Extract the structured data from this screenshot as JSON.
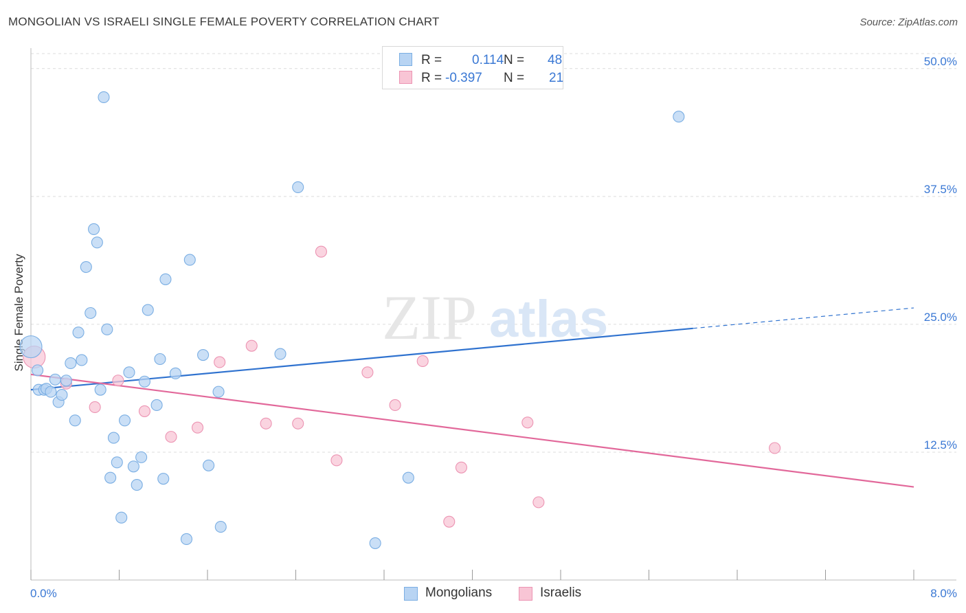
{
  "title": "MONGOLIAN VS ISRAELI SINGLE FEMALE POVERTY CORRELATION CHART",
  "source": "Source: ZipAtlas.com",
  "watermark": {
    "zip": "ZIP",
    "atlas": "atlas"
  },
  "colors": {
    "mongolian_fill": "#b8d4f3",
    "mongolian_stroke": "#7aaee3",
    "mongolian_line": "#2f72cf",
    "israeli_fill": "#f8c5d5",
    "israeli_stroke": "#ec93b2",
    "israeli_line": "#e2689a",
    "tick_label": "#3a78d4",
    "grid": "#dcdcdc"
  },
  "legend": {
    "rows": [
      {
        "r_label": "R =",
        "r_value": "0.114",
        "n_label": "N =",
        "n_value": "48"
      },
      {
        "r_label": "R =",
        "r_value": "-0.397",
        "n_label": "N =",
        "n_value": "21"
      }
    ],
    "bottom": [
      "Mongolians",
      "Israelis"
    ]
  },
  "chart_data": {
    "type": "scatter",
    "title": "MONGOLIAN VS ISRAELI SINGLE FEMALE POVERTY CORRELATION CHART",
    "xlabel": "",
    "ylabel": "Single Female Poverty",
    "xlim": [
      0,
      8
    ],
    "ylim": [
      0,
      52
    ],
    "x_tick_labels": [
      "0.0%",
      "8.0%"
    ],
    "y_ticks": [
      12.5,
      25.0,
      37.5,
      50.0
    ],
    "y_tick_labels": [
      "12.5%",
      "25.0%",
      "37.5%",
      "50.0%"
    ],
    "grid": true,
    "series": [
      {
        "name": "Mongolians",
        "r": 0.114,
        "n": 48,
        "trend": {
          "x0": 0,
          "y0": 18.6,
          "x1": 8,
          "y1": 26.6,
          "solid_until_x": 6.0
        },
        "points": [
          {
            "x": 0.0,
            "y": 22.8,
            "big": true
          },
          {
            "x": 0.06,
            "y": 20.5
          },
          {
            "x": 0.07,
            "y": 18.6
          },
          {
            "x": 0.12,
            "y": 18.6
          },
          {
            "x": 0.14,
            "y": 18.7
          },
          {
            "x": 0.18,
            "y": 18.4
          },
          {
            "x": 0.22,
            "y": 19.6
          },
          {
            "x": 0.25,
            "y": 17.4
          },
          {
            "x": 0.28,
            "y": 18.1
          },
          {
            "x": 0.32,
            "y": 19.5
          },
          {
            "x": 0.36,
            "y": 21.2
          },
          {
            "x": 0.4,
            "y": 15.6
          },
          {
            "x": 0.43,
            "y": 24.2
          },
          {
            "x": 0.46,
            "y": 21.5
          },
          {
            "x": 0.5,
            "y": 30.6
          },
          {
            "x": 0.54,
            "y": 26.1
          },
          {
            "x": 0.57,
            "y": 34.3
          },
          {
            "x": 0.6,
            "y": 33.0
          },
          {
            "x": 0.63,
            "y": 18.6
          },
          {
            "x": 0.66,
            "y": 47.2
          },
          {
            "x": 0.69,
            "y": 24.5
          },
          {
            "x": 0.72,
            "y": 10.0
          },
          {
            "x": 0.75,
            "y": 13.9
          },
          {
            "x": 0.78,
            "y": 11.5
          },
          {
            "x": 0.82,
            "y": 6.1
          },
          {
            "x": 0.85,
            "y": 15.6
          },
          {
            "x": 0.89,
            "y": 20.3
          },
          {
            "x": 0.93,
            "y": 11.1
          },
          {
            "x": 0.96,
            "y": 9.3
          },
          {
            "x": 1.0,
            "y": 12.0
          },
          {
            "x": 1.03,
            "y": 19.4
          },
          {
            "x": 1.06,
            "y": 26.4
          },
          {
            "x": 1.14,
            "y": 17.1
          },
          {
            "x": 1.17,
            "y": 21.6
          },
          {
            "x": 1.2,
            "y": 9.9
          },
          {
            "x": 1.22,
            "y": 29.4
          },
          {
            "x": 1.31,
            "y": 20.2
          },
          {
            "x": 1.41,
            "y": 4.0
          },
          {
            "x": 1.44,
            "y": 31.3
          },
          {
            "x": 1.61,
            "y": 11.2
          },
          {
            "x": 1.56,
            "y": 22.0
          },
          {
            "x": 1.7,
            "y": 18.4
          },
          {
            "x": 1.72,
            "y": 5.2
          },
          {
            "x": 2.26,
            "y": 22.1
          },
          {
            "x": 2.42,
            "y": 38.4
          },
          {
            "x": 3.12,
            "y": 3.6
          },
          {
            "x": 3.42,
            "y": 10.0
          },
          {
            "x": 5.87,
            "y": 45.3
          }
        ]
      },
      {
        "name": "Israelis",
        "r": -0.397,
        "n": 21,
        "trend": {
          "x0": 0,
          "y0": 20.1,
          "x1": 8,
          "y1": 9.1
        },
        "points": [
          {
            "x": 0.03,
            "y": 21.8,
            "big": true
          },
          {
            "x": 0.32,
            "y": 19.2
          },
          {
            "x": 0.58,
            "y": 16.9
          },
          {
            "x": 0.79,
            "y": 19.5
          },
          {
            "x": 1.03,
            "y": 16.5
          },
          {
            "x": 1.27,
            "y": 14.0
          },
          {
            "x": 1.51,
            "y": 14.9
          },
          {
            "x": 1.71,
            "y": 21.3
          },
          {
            "x": 2.0,
            "y": 22.9
          },
          {
            "x": 2.13,
            "y": 15.3
          },
          {
            "x": 2.42,
            "y": 15.3
          },
          {
            "x": 2.63,
            "y": 32.1
          },
          {
            "x": 2.77,
            "y": 11.7
          },
          {
            "x": 3.05,
            "y": 20.3
          },
          {
            "x": 3.3,
            "y": 17.1
          },
          {
            "x": 3.55,
            "y": 21.4
          },
          {
            "x": 3.79,
            "y": 5.7
          },
          {
            "x": 3.9,
            "y": 11.0
          },
          {
            "x": 4.5,
            "y": 15.4
          },
          {
            "x": 4.6,
            "y": 7.6
          },
          {
            "x": 6.74,
            "y": 12.9
          }
        ]
      }
    ]
  }
}
